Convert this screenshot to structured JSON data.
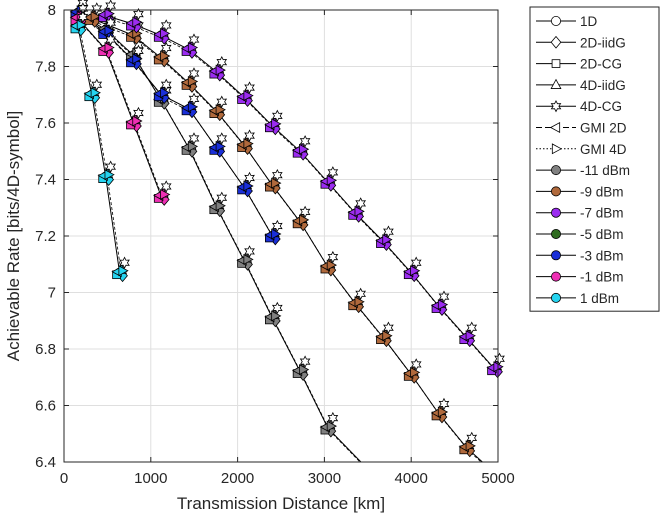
{
  "chart_data": {
    "type": "line",
    "xlabel": "Transmission Distance [km]",
    "ylabel": "Achievable Rate [bits/4D-symbol]",
    "xlim": [
      0,
      5000
    ],
    "ylim": [
      6.4,
      8
    ],
    "xticks": [
      0,
      1000,
      2000,
      3000,
      4000,
      5000
    ],
    "yticks": [
      6.4,
      6.6,
      6.8,
      7,
      7.2,
      7.4,
      7.6,
      7.8,
      8
    ],
    "xtick_labels": [
      "0",
      "1000",
      "2000",
      "3000",
      "4000",
      "5000"
    ],
    "ytick_labels": [
      "6.4",
      "6.6",
      "6.8",
      "7",
      "7.2",
      "7.4",
      "7.6",
      "7.8",
      "8"
    ],
    "grid": true,
    "legend_position": "outside-right",
    "legend": [
      {
        "label": "1D",
        "line": "solid",
        "marker": "circle",
        "fill": "#ffffff"
      },
      {
        "label": "2D-iidG",
        "line": "solid",
        "marker": "diamond",
        "fill": "#ffffff"
      },
      {
        "label": "2D-CG",
        "line": "solid",
        "marker": "square",
        "fill": "#ffffff"
      },
      {
        "label": "4D-iidG",
        "line": "solid",
        "marker": "triangle-up",
        "fill": "#ffffff"
      },
      {
        "label": "4D-CG",
        "line": "solid",
        "marker": "hexagram",
        "fill": "#ffffff"
      },
      {
        "label": "GMI 2D",
        "line": "dashed",
        "marker": "triangle-left",
        "fill": "#ffffff"
      },
      {
        "label": "GMI 4D",
        "line": "dotted",
        "marker": "triangle-right",
        "fill": "#ffffff"
      },
      {
        "label": "-11 dBm",
        "line": "solid",
        "marker": "circle",
        "fill": "#808080"
      },
      {
        "label": "-9 dBm",
        "line": "solid",
        "marker": "circle",
        "fill": "#b0693c"
      },
      {
        "label": "-7 dBm",
        "line": "solid",
        "marker": "circle",
        "fill": "#9b2cf0"
      },
      {
        "label": "-5 dBm",
        "line": "solid",
        "marker": "circle",
        "fill": "#2e6b1f"
      },
      {
        "label": "-3 dBm",
        "line": "solid",
        "marker": "circle",
        "fill": "#1a2fd8"
      },
      {
        "label": "-1 dBm",
        "line": "solid",
        "marker": "circle",
        "fill": "#ee2fb4"
      },
      {
        "label": "1 dBm",
        "line": "solid",
        "marker": "circle",
        "fill": "#26d4f0"
      }
    ],
    "series": [
      {
        "power": "-11 dBm",
        "color": "#808080",
        "x": [
          160,
          480,
          800,
          1120,
          1440,
          1760,
          2080,
          2400,
          2720,
          3040
        ],
        "y": [
          7.99,
          7.93,
          7.84,
          7.68,
          7.51,
          7.3,
          7.11,
          6.91,
          6.72,
          6.52
        ],
        "extend_to": [
          3420,
          6.4
        ]
      },
      {
        "power": "-9 dBm",
        "color": "#b0693c",
        "x": [
          320,
          800,
          1120,
          1440,
          1760,
          2080,
          2400,
          2720,
          3040,
          3360,
          3680,
          4000,
          4320,
          4640
        ],
        "y": [
          7.97,
          7.91,
          7.83,
          7.74,
          7.64,
          7.52,
          7.38,
          7.25,
          7.09,
          6.96,
          6.84,
          6.71,
          6.57,
          6.45
        ],
        "extend_to": [
          4820,
          6.4
        ]
      },
      {
        "power": "-7 dBm",
        "color": "#9b2cf0",
        "x": [
          480,
          800,
          1120,
          1440,
          1760,
          2080,
          2400,
          2720,
          3040,
          3360,
          3680,
          4000,
          4320,
          4640,
          4960
        ],
        "y": [
          7.98,
          7.95,
          7.91,
          7.86,
          7.78,
          7.69,
          7.59,
          7.5,
          7.39,
          7.28,
          7.18,
          7.07,
          6.95,
          6.84,
          6.73
        ]
      },
      {
        "power": "-3 dBm",
        "color": "#1a2fd8",
        "x": [
          160,
          480,
          800,
          1120,
          1440,
          1760,
          2080,
          2400
        ],
        "y": [
          7.99,
          7.92,
          7.82,
          7.7,
          7.65,
          7.51,
          7.37,
          7.2
        ]
      },
      {
        "power": "-1 dBm",
        "color": "#ee2fb4",
        "x": [
          160,
          480,
          800,
          1120
        ],
        "y": [
          7.97,
          7.86,
          7.6,
          7.34
        ]
      },
      {
        "power": "1 dBm",
        "color": "#26d4f0",
        "x": [
          160,
          320,
          480,
          640
        ],
        "y": [
          7.94,
          7.7,
          7.41,
          7.07
        ]
      }
    ]
  }
}
